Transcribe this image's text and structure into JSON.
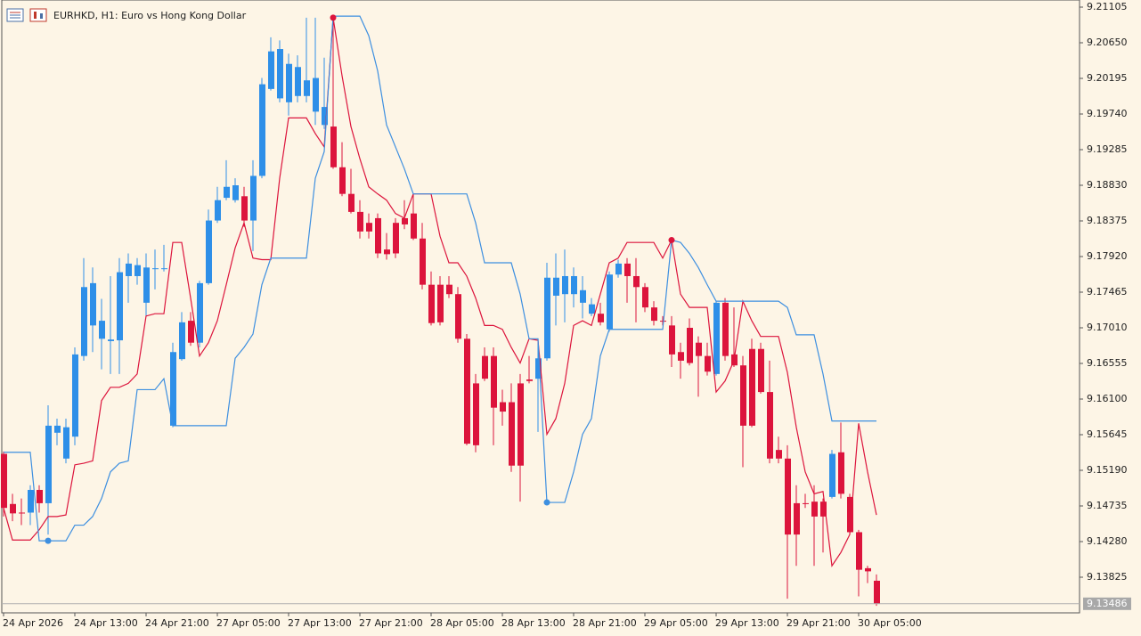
{
  "chart_data": {
    "type": "candlestick",
    "title": "EURHKD, H1:  Euro vs Hong Kong Dollar",
    "up_color": "#2e8fe8",
    "down_color": "#dc143c",
    "categories": [
      "24 Apr 2026",
      null,
      null,
      null,
      null,
      null,
      null,
      null,
      "24 Apr 13:00",
      null,
      null,
      null,
      null,
      null,
      null,
      null,
      "24 Apr 21:00",
      null,
      null,
      null,
      null,
      null,
      null,
      null,
      "27 Apr 05:00",
      null,
      null,
      null,
      null,
      null,
      null,
      null,
      "27 Apr 13:00",
      null,
      null,
      null,
      null,
      null,
      null,
      null,
      "27 Apr 21:00",
      null,
      null,
      null,
      null,
      null,
      null,
      null,
      "28 Apr 05:00",
      null,
      null,
      null,
      null,
      null,
      null,
      null,
      "28 Apr 13:00",
      null,
      null,
      null,
      null,
      null,
      null,
      null,
      "28 Apr 21:00",
      null,
      null,
      null,
      null,
      null,
      null,
      null,
      "29 Apr 05:00",
      null,
      null,
      null,
      null,
      null,
      null,
      null,
      "29 Apr 13:00",
      null,
      null,
      null,
      null,
      null,
      null,
      null,
      "29 Apr 21:00",
      null,
      null,
      null,
      null,
      null,
      null,
      null,
      "30 Apr 05:00",
      null,
      null
    ],
    "open": [
      9.154,
      9.1476,
      9.1465,
      9.1465,
      9.1494,
      9.1477,
      9.1567,
      9.1534,
      9.1562,
      9.1665,
      9.1704,
      9.1687,
      9.1684,
      9.1685,
      9.1767,
      9.1767,
      9.1733,
      9.1776,
      9.1776,
      9.1576,
      9.1661,
      9.171,
      9.1682,
      9.1758,
      9.1838,
      9.1867,
      9.1864,
      9.1869,
      9.1838,
      9.1895,
      9.2006,
      9.1994,
      9.1989,
      9.1997,
      9.1997,
      9.1977,
      9.196,
      9.1958,
      9.1906,
      9.1872,
      9.1849,
      9.1835,
      9.1841,
      9.1801,
      9.1835,
      9.1841,
      9.1847,
      9.1815,
      9.1756,
      9.1756,
      9.1756,
      9.1744,
      9.1687,
      9.163,
      9.1665,
      9.1665,
      9.1606,
      9.1606,
      9.163,
      9.1635,
      9.1636,
      9.1662,
      9.1742,
      9.1744,
      9.1744,
      9.1733,
      9.1719,
      9.1719,
      9.1699,
      9.1769,
      9.1783,
      9.1767,
      9.1753,
      9.1727,
      9.171,
      9.1704,
      9.167,
      9.1701,
      9.1682,
      9.1665,
      9.1642,
      9.1733,
      9.1667,
      9.1653,
      9.1674,
      9.1674,
      9.1619,
      9.1545,
      9.1534,
      9.1477,
      9.1477,
      9.1479,
      9.1479,
      9.1485,
      9.1542,
      9.1485,
      9.144,
      9.1394,
      9.1378
    ],
    "high": [
      9.1543,
      9.1489,
      9.1483,
      9.15,
      9.15,
      9.1602,
      9.1585,
      9.1585,
      9.1676,
      9.179,
      9.1778,
      9.1738,
      9.1767,
      9.179,
      9.1796,
      9.179,
      9.1796,
      9.1801,
      9.1807,
      9.1682,
      9.1721,
      9.1721,
      9.1761,
      9.1852,
      9.1881,
      9.1915,
      9.1892,
      9.1881,
      9.1915,
      9.202,
      9.2072,
      9.2068,
      9.2051,
      9.2049,
      9.2097,
      9.2097,
      9.2046,
      9.2097,
      9.1938,
      9.1904,
      9.1864,
      9.1847,
      9.1847,
      9.1822,
      9.1841,
      9.1864,
      9.1872,
      9.1835,
      9.1773,
      9.1767,
      9.1767,
      9.1753,
      9.1693,
      9.1642,
      9.1676,
      9.1676,
      9.1622,
      9.163,
      9.1642,
      9.1665,
      9.1687,
      9.1784,
      9.1796,
      9.1801,
      9.1778,
      9.1767,
      9.1739,
      9.1733,
      9.1773,
      9.1788,
      9.179,
      9.179,
      9.1758,
      9.1735,
      9.1716,
      9.1716,
      9.1682,
      9.1713,
      9.169,
      9.1682,
      9.1735,
      9.1739,
      9.1727,
      9.1665,
      9.1687,
      9.1682,
      9.1659,
      9.1562,
      9.1551,
      9.15,
      9.1489,
      9.15,
      9.1483,
      9.1545,
      9.158,
      9.1489,
      9.1443,
      9.1397,
      9.1386
    ],
    "low": [
      9.146,
      9.1454,
      9.1449,
      9.1449,
      9.1465,
      9.1437,
      9.1551,
      9.1528,
      9.1551,
      9.1659,
      9.167,
      9.1648,
      9.1642,
      9.1642,
      9.1733,
      9.1756,
      9.1716,
      9.175,
      9.1773,
      9.1574,
      9.1659,
      9.1678,
      9.1676,
      9.1756,
      9.1835,
      9.1864,
      9.1861,
      9.183,
      9.1799,
      9.1892,
      9.2004,
      9.1989,
      9.1972,
      9.1989,
      9.1989,
      9.196,
      9.1955,
      9.1904,
      9.1869,
      9.1847,
      9.1815,
      9.1815,
      9.179,
      9.1788,
      9.179,
      9.1827,
      9.1813,
      9.175,
      9.1704,
      9.1704,
      9.1739,
      9.1682,
      9.1551,
      9.1542,
      9.1633,
      9.1551,
      9.1576,
      9.1517,
      9.1479,
      9.163,
      9.1568,
      9.1659,
      9.1704,
      9.1708,
      9.1727,
      9.1713,
      9.1716,
      9.1704,
      9.1696,
      9.1765,
      9.1733,
      9.1708,
      9.1721,
      9.1704,
      9.1704,
      9.1651,
      9.1636,
      9.1653,
      9.1613,
      9.164,
      9.164,
      9.1659,
      9.1651,
      9.1523,
      9.1574,
      9.1617,
      9.1528,
      9.1528,
      9.1355,
      9.1397,
      9.1471,
      9.1397,
      9.1414,
      9.1483,
      9.1483,
      9.1437,
      9.1358,
      9.1375,
      9.1346
    ],
    "close": [
      9.1471,
      9.1464,
      9.1464,
      9.1494,
      9.1477,
      9.1576,
      9.1576,
      9.1574,
      9.1667,
      9.1753,
      9.1758,
      9.171,
      9.1686,
      9.1772,
      9.1783,
      9.1781,
      9.1778,
      9.1777,
      9.1777,
      9.167,
      9.1708,
      9.1682,
      9.1758,
      9.1838,
      9.1864,
      9.1881,
      9.1883,
      9.1838,
      9.1895,
      9.2012,
      9.2054,
      9.2057,
      9.2038,
      9.2034,
      9.2017,
      9.202,
      9.1983,
      9.1906,
      9.1872,
      9.1849,
      9.1824,
      9.1824,
      9.1796,
      9.1795,
      9.1796,
      9.1833,
      9.1815,
      9.1756,
      9.1707,
      9.1708,
      9.1744,
      9.1687,
      9.1553,
      9.1551,
      9.1636,
      9.1599,
      9.1594,
      9.1525,
      9.1525,
      9.1633,
      9.1662,
      9.1765,
      9.1765,
      9.1767,
      9.1767,
      9.1749,
      9.1731,
      9.1708,
      9.1769,
      9.1783,
      9.1767,
      9.1753,
      9.1727,
      9.171,
      9.1709,
      9.1667,
      9.1659,
      9.1656,
      9.1665,
      9.1645,
      9.1733,
      9.1665,
      9.1653,
      9.1576,
      9.1576,
      9.1619,
      9.1534,
      9.1534,
      9.1437,
      9.1437,
      9.1476,
      9.146,
      9.146,
      9.154,
      9.1489,
      9.144,
      9.1392,
      9.139,
      9.1349
    ],
    "series": [
      {
        "color": "#dc143c",
        "values": [
          9.1471,
          9.143,
          9.143,
          9.143,
          9.1443,
          9.146,
          9.146,
          9.1462,
          9.1526,
          9.1528,
          9.1531,
          9.1608,
          9.1625,
          9.1625,
          9.163,
          9.1642,
          9.1716,
          9.1719,
          9.1719,
          9.181,
          9.181,
          9.1739,
          9.1665,
          9.1682,
          9.171,
          9.1756,
          9.1803,
          9.1835,
          9.179,
          9.1788,
          9.1788,
          9.1892,
          9.1969,
          9.1969,
          9.1969,
          9.1949,
          9.1932,
          9.2097,
          9.2023,
          9.1958,
          9.1917,
          9.1881,
          9.1872,
          9.1864,
          9.1847,
          9.1841,
          9.1872,
          9.1872,
          9.1872,
          9.1818,
          9.1784,
          9.1784,
          9.1767,
          9.1739,
          9.1704,
          9.1704,
          9.1699,
          9.1676,
          9.1656,
          9.1687,
          9.1685,
          9.1565,
          9.1585,
          9.163,
          9.1704,
          9.171,
          9.1704,
          9.1744,
          9.1784,
          9.179,
          9.181,
          9.181,
          9.181,
          9.181,
          9.179,
          9.1813,
          9.1744,
          9.1727,
          9.1727,
          9.1727,
          9.1619,
          9.1633,
          9.1659,
          9.1735,
          9.171,
          9.169,
          9.169,
          9.169,
          9.1644,
          9.1574,
          9.1517,
          9.1489,
          9.1492,
          9.1397,
          9.1414,
          9.1437,
          9.1579,
          9.1517,
          9.1462
        ]
      },
      {
        "color": "#3d8fe0",
        "values": [
          9.1542,
          9.1542,
          9.1542,
          9.1542,
          9.1429,
          9.1429,
          9.1429,
          9.1429,
          9.1449,
          9.1449,
          9.146,
          9.1483,
          9.1517,
          9.1528,
          9.1531,
          9.1622,
          9.1622,
          9.1622,
          9.1636,
          9.1576,
          9.1576,
          9.1576,
          9.1576,
          9.1576,
          9.1576,
          9.1576,
          9.1662,
          9.1676,
          9.1693,
          9.1756,
          9.179,
          9.179,
          9.179,
          9.179,
          9.179,
          9.1892,
          9.1926,
          9.2099,
          9.2099,
          9.2099,
          9.2099,
          9.2074,
          9.2029,
          9.196,
          9.1932,
          9.1904,
          9.1872,
          9.1872,
          9.1872,
          9.1872,
          9.1872,
          9.1872,
          9.1872,
          9.1835,
          9.1784,
          9.1784,
          9.1784,
          9.1784,
          9.1744,
          9.1687,
          9.1687,
          9.1478,
          9.1478,
          9.1478,
          9.1517,
          9.1565,
          9.1585,
          9.1665,
          9.1699,
          9.1699,
          9.1699,
          9.1699,
          9.1699,
          9.1699,
          9.1699,
          9.1813,
          9.181,
          9.1796,
          9.1778,
          9.1756,
          9.1735,
          9.1735,
          9.1735,
          9.1735,
          9.1735,
          9.1735,
          9.1735,
          9.1735,
          9.1727,
          9.1692,
          9.1692,
          9.1692,
          9.1642,
          9.1582,
          9.1582,
          9.1582,
          9.1582,
          9.1582,
          9.1582
        ]
      }
    ],
    "markers": [
      {
        "series": 1,
        "index": 5
      },
      {
        "series": 1,
        "index": 61
      },
      {
        "series": 0,
        "index": 37
      },
      {
        "series": 0,
        "index": 75
      }
    ],
    "ylim": [
      9.1337,
      9.21196
    ],
    "yticks": [
      9.21105,
      {
        "value": 9.2065,
        "label": "9.20650"
      },
      9.20195,
      {
        "value": 9.1974,
        "label": "9.19740"
      },
      9.19285,
      {
        "value": 9.1883,
        "label": "9.18830"
      },
      9.18375,
      {
        "value": 9.1792,
        "label": "9.17920"
      },
      9.17465,
      {
        "value": 9.1701,
        "label": "9.17010"
      },
      9.16555,
      {
        "value": 9.161,
        "label": "9.16100"
      },
      9.15645,
      {
        "value": 9.1519,
        "label": "9.15190"
      },
      9.14735,
      {
        "value": 9.1428,
        "label": "9.14280"
      },
      9.13825
    ],
    "last_price": 9.13486
  }
}
